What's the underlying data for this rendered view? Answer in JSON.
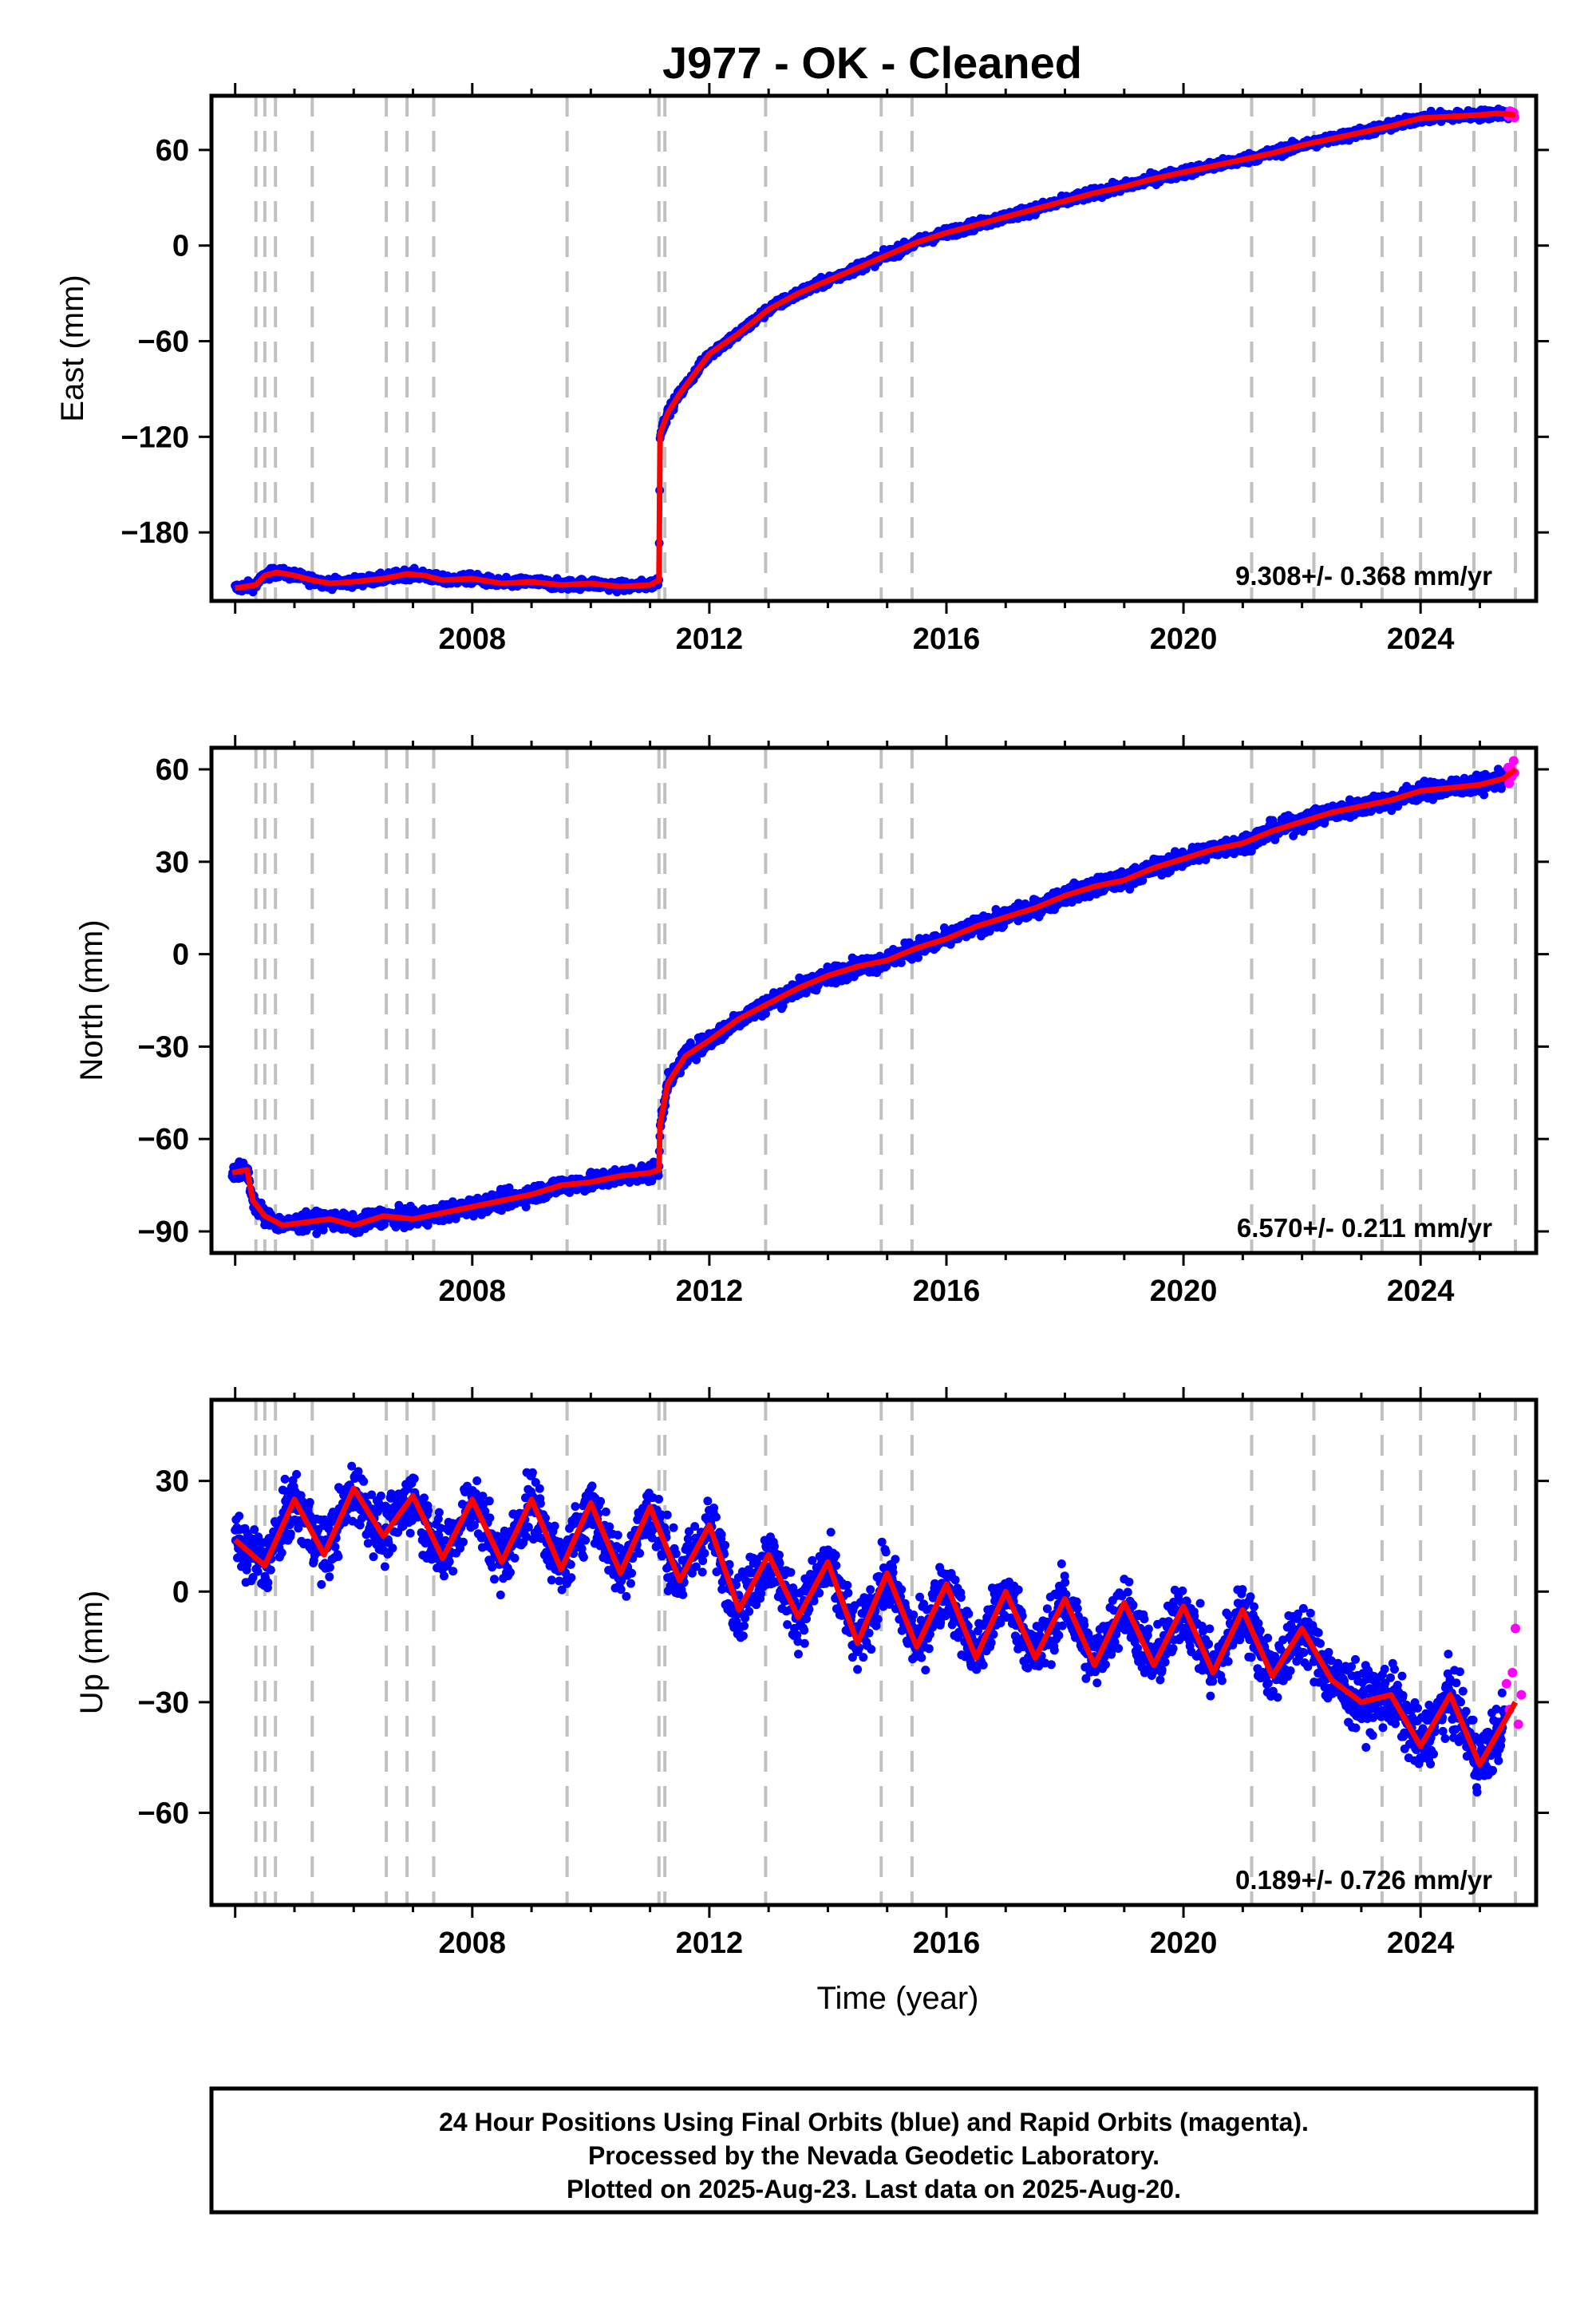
{
  "title": "J977  - OK - Cleaned",
  "colors": {
    "final": "#0000ff",
    "rapid": "#ff00ff",
    "model": "#ff0000",
    "events": "#c0c0c0"
  },
  "footer": {
    "lines": [
      "24 Hour Positions Using Final Orbits (blue) and Rapid Orbits (magenta).",
      "Processed by the Nevada Geodetic Laboratory.",
      "Plotted on 2025-Aug-23. Last data on 2025-Aug-20."
    ]
  },
  "chart_data": [
    {
      "type": "scatter",
      "ylabel": "East (mm)",
      "xlabel": "",
      "xlim": [
        2003.6,
        2025.95
      ],
      "ylim": [
        -223,
        94
      ],
      "xticks": [
        "2008",
        "2012",
        "2016",
        "2020",
        "2024"
      ],
      "yticks": [
        "60",
        "0",
        "−60",
        "−120",
        "−180"
      ],
      "rate_label": "9.308+/- 0.368 mm/yr",
      "events": [
        2004.35,
        2004.5,
        2004.68,
        2005.3,
        2006.55,
        2006.9,
        2007.35,
        2009.6,
        2011.15,
        2011.25,
        2012.95,
        2014.9,
        2015.42,
        2021.15,
        2022.2,
        2023.35,
        2024.0,
        2024.9,
        2025.6
      ],
      "series": [
        {
          "name": "",
          "x": [
            2004.0,
            2004.35,
            2004.5,
            2004.7,
            2005.0,
            2005.3,
            2005.6,
            2006.0,
            2006.5,
            2006.9,
            2007.2,
            2007.5,
            2008.0,
            2008.5,
            2009.0,
            2009.5,
            2010.0,
            2010.5,
            2011.0,
            2011.1,
            2011.15,
            2011.17,
            2011.3,
            2011.5,
            2012.0,
            2012.5,
            2013.0,
            2013.5,
            2014.0,
            2014.5,
            2015.0,
            2015.5,
            2016.0,
            2016.5,
            2017.0,
            2017.5,
            2018.0,
            2018.5,
            2019.0,
            2019.5,
            2020.0,
            2020.5,
            2021.0,
            2021.5,
            2022.0,
            2022.5,
            2023.0,
            2023.5,
            2024.0,
            2024.5,
            2025.0,
            2025.3,
            2025.6
          ],
          "y": [
            -215,
            -213,
            -207,
            -205,
            -207,
            -210,
            -212,
            -211,
            -209,
            -206,
            -207,
            -210,
            -209,
            -212,
            -211,
            -213,
            -212,
            -214,
            -213,
            -211,
            -210,
            -118,
            -105,
            -93,
            -68,
            -55,
            -40,
            -30,
            -22,
            -14,
            -6,
            2,
            8,
            13,
            18,
            23,
            28,
            33,
            37,
            42,
            46,
            50,
            54,
            58,
            63,
            67,
            71,
            75,
            80,
            81,
            82,
            83,
            82
          ]
        }
      ]
    },
    {
      "type": "scatter",
      "ylabel": "North (mm)",
      "xlabel": "",
      "xlim": [
        2003.6,
        2025.95
      ],
      "ylim": [
        -97,
        67
      ],
      "xticks": [
        "2008",
        "2012",
        "2016",
        "2020",
        "2024"
      ],
      "yticks": [
        "60",
        "30",
        "0",
        "−30",
        "−60",
        "−90"
      ],
      "rate_label": "6.570+/- 0.211 mm/yr",
      "events": [
        2004.35,
        2004.5,
        2004.68,
        2005.3,
        2006.55,
        2006.9,
        2007.35,
        2009.6,
        2011.15,
        2011.25,
        2012.95,
        2014.9,
        2015.42,
        2021.15,
        2022.2,
        2023.35,
        2024.0,
        2024.9,
        2025.6
      ],
      "series": [
        {
          "name": "",
          "x": [
            2003.95,
            2004.2,
            2004.3,
            2004.5,
            2004.8,
            2005.2,
            2005.6,
            2006.0,
            2006.5,
            2007.0,
            2007.5,
            2008.0,
            2008.5,
            2009.0,
            2009.5,
            2010.0,
            2010.5,
            2011.0,
            2011.15,
            2011.17,
            2011.3,
            2011.6,
            2012.0,
            2012.5,
            2013.0,
            2013.5,
            2014.0,
            2014.5,
            2015.0,
            2015.5,
            2016.0,
            2016.5,
            2017.0,
            2017.5,
            2018.0,
            2018.5,
            2019.0,
            2019.5,
            2020.0,
            2020.5,
            2021.0,
            2021.5,
            2022.0,
            2022.5,
            2023.0,
            2023.5,
            2024.0,
            2024.5,
            2025.0,
            2025.4,
            2025.6
          ],
          "y": [
            -71,
            -70,
            -80,
            -85,
            -88,
            -87,
            -86,
            -88,
            -85,
            -86,
            -84,
            -82,
            -80,
            -78,
            -75,
            -74,
            -72,
            -71,
            -70,
            -55,
            -42,
            -33,
            -28,
            -21,
            -16,
            -11,
            -7,
            -4,
            -2,
            2,
            5,
            9,
            12,
            15,
            19,
            22,
            24,
            28,
            31,
            34,
            36,
            40,
            43,
            46,
            48,
            50,
            53,
            54,
            55,
            57,
            60
          ]
        }
      ]
    },
    {
      "type": "scatter",
      "ylabel": "Up (mm)",
      "xlabel": "Time (year)",
      "xlim": [
        2003.6,
        2025.95
      ],
      "ylim": [
        -85,
        52
      ],
      "xticks": [
        "2008",
        "2012",
        "2016",
        "2020",
        "2024"
      ],
      "yticks": [
        "30",
        "0",
        "−30",
        "−60"
      ],
      "rate_label": "0.189+/- 0.726 mm/yr",
      "events": [
        2004.35,
        2004.5,
        2004.68,
        2005.3,
        2006.55,
        2006.9,
        2007.35,
        2009.6,
        2011.15,
        2011.25,
        2012.95,
        2014.9,
        2015.42,
        2021.15,
        2022.2,
        2023.35,
        2024.0,
        2024.9,
        2025.6
      ],
      "series": [
        {
          "name": "",
          "x": [
            2004.0,
            2004.5,
            2005.0,
            2005.5,
            2006.0,
            2006.5,
            2007.0,
            2007.5,
            2008.0,
            2008.5,
            2009.0,
            2009.5,
            2010.0,
            2010.5,
            2011.0,
            2011.5,
            2012.0,
            2012.5,
            2013.0,
            2013.5,
            2014.0,
            2014.5,
            2015.0,
            2015.5,
            2016.0,
            2016.5,
            2017.0,
            2017.5,
            2018.0,
            2018.5,
            2019.0,
            2019.5,
            2020.0,
            2020.5,
            2021.0,
            2021.5,
            2022.0,
            2022.5,
            2023.0,
            2023.5,
            2024.0,
            2024.5,
            2025.0,
            2025.6
          ],
          "y": [
            14,
            7,
            25,
            10,
            28,
            15,
            26,
            9,
            25,
            8,
            25,
            6,
            24,
            5,
            23,
            3,
            18,
            -5,
            10,
            -7,
            8,
            -14,
            5,
            -15,
            2,
            -18,
            0,
            -18,
            -2,
            -20,
            -3,
            -20,
            -4,
            -22,
            -5,
            -23,
            -10,
            -24,
            -30,
            -28,
            -42,
            -28,
            -47,
            -30
          ]
        },
        {
          "name": "",
          "x": [
            2025.45,
            2025.5,
            2025.55,
            2025.6,
            2025.65,
            2025.7
          ],
          "y": [
            -25,
            -32,
            -22,
            -10,
            -36,
            -28
          ]
        }
      ]
    }
  ]
}
